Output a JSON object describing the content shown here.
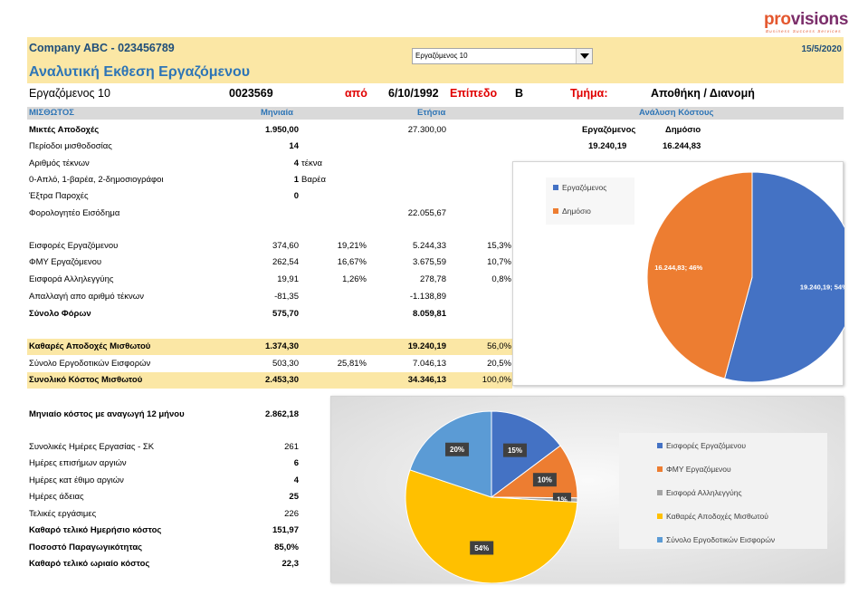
{
  "logo": {
    "part1": "pro",
    "part2": "visions",
    "tagline": "Business Success Services"
  },
  "header": {
    "company": "Company ABC - 023456789",
    "title": "Αναλυτική Εκθεση Εργαζόμενου",
    "date": "15/5/2020",
    "dropdown_value": "Εργαζόμενος 10"
  },
  "employee": {
    "name": "Εργαζόμενος 10",
    "id": "0023569",
    "from_label": "από",
    "from_date": "6/10/1992",
    "level_label": "Επίπεδο",
    "level": "B",
    "dept_label": "Τμήμα:",
    "dept": "Αποθήκη / Διανομή"
  },
  "columns": {
    "salary": "ΜΙΣΘΩΤΟΣ",
    "monthly": "Μηνιαία",
    "annual": "Ετήσια",
    "cost": "Ανάλυση Κόστους"
  },
  "cost_analysis": {
    "employee_label": "Εργαζόμενος",
    "public_label": "Δημόσιο",
    "employee_value": "19.240,19",
    "public_value": "16.244,83"
  },
  "rows": {
    "gross": {
      "label": "Μικτές Αποδοχές",
      "monthly": "1.950,00",
      "annual": "27.300,00"
    },
    "periods": {
      "label": "Περίοδοι μισθοδοσίας",
      "monthly": "14"
    },
    "children": {
      "label": "Αριθμός τέκνων",
      "monthly": "4",
      "unit": "τέκνα"
    },
    "insurance": {
      "label": "0-Απλό, 1-βαρέα, 2-δημοσιογράφοι",
      "monthly": "1",
      "unit": "Βαρέα"
    },
    "extra": {
      "label": "Έξτρα Παροχές",
      "monthly": "0"
    },
    "taxable": {
      "label": "Φορολογητέο Εισόδημα",
      "annual": "22.055,67"
    },
    "contrib": {
      "label": "Εισφορές Εργαζόμενου",
      "monthly": "374,60",
      "pct_m": "19,21%",
      "annual": "5.244,33",
      "pct_a": "15,3%"
    },
    "tax": {
      "label": "ΦΜΥ Εργαζόμενου",
      "monthly": "262,54",
      "pct_m": "16,67%",
      "annual": "3.675,59",
      "pct_a": "10,7%"
    },
    "solidarity": {
      "label": "Εισφορά Αλληλεγγύης",
      "monthly": "19,91",
      "pct_m": "1,26%",
      "annual": "278,78",
      "pct_a": "0,8%"
    },
    "exemption": {
      "label": "Απαλλαγή απο αριθμό τέκνων",
      "monthly": "-81,35",
      "annual": "-1.138,89"
    },
    "total_tax": {
      "label": "Σύνολο Φόρων",
      "monthly": "575,70",
      "annual": "8.059,81"
    },
    "net": {
      "label": "Καθαρές Αποδοχές Μισθωτού",
      "monthly": "1.374,30",
      "annual": "19.240,19",
      "pct_a": "56,0%"
    },
    "employer": {
      "label": "Σύνολο Εργοδοτικών Εισφορών",
      "monthly": "503,30",
      "pct_m": "25,81%",
      "annual": "7.046,13",
      "pct_a": "20,5%"
    },
    "total_cost": {
      "label": "Συνολικό Κόστος Μισθωτού",
      "monthly": "2.453,30",
      "annual": "34.346,13",
      "pct_a": "100,0%"
    },
    "monthly12": {
      "label": "Μηνιαίο κόστος με αναγωγή 12 μήνου",
      "monthly": "2.862,18"
    },
    "workdays": {
      "label": "Συνολικές Ημέρες Εργασίας - ΣΚ",
      "monthly": "261"
    },
    "holidays": {
      "label": "Ημέρες επισήμων αργιών",
      "monthly": "6"
    },
    "customs": {
      "label": "Ημέρες κατ έθιμο αργιών",
      "monthly": "4"
    },
    "leave": {
      "label": "Ημέρες άδειας",
      "monthly": "25"
    },
    "final_days": {
      "label": "Τελικές εργάσιμες",
      "monthly": "226"
    },
    "daily_cost": {
      "label": "Καθαρό τελικό Ημερήσιο κόστος",
      "monthly": "151,97"
    },
    "productivity": {
      "label": "Ποσοστό Παραγωγικότητας",
      "monthly": "85,0%"
    },
    "hourly_cost": {
      "label": "Καθαρό τελικό ωριαίο κόστος",
      "monthly": "22,3"
    }
  },
  "chart_data": [
    {
      "type": "pie",
      "title": "",
      "categories": [
        "Εργαζόμενος",
        "Δημόσιο"
      ],
      "values": [
        19240.19,
        16244.83
      ],
      "labels": [
        "19.240,19; 54%",
        "16.244,83; 46%"
      ],
      "colors": [
        "#4472c4",
        "#ed7d31"
      ],
      "legend": "top-left"
    },
    {
      "type": "pie",
      "title": "",
      "categories": [
        "Εισφορές Εργαζόμενου",
        "ΦΜΥ Εργαζόμενου",
        "Εισφορά Αλληλεγγύης",
        "Καθαρές Αποδοχές Μισθωτού",
        "Σύνολο Εργοδοτικών Εισφορών"
      ],
      "values": [
        5244.33,
        3675.59,
        278.78,
        19240.19,
        7046.13
      ],
      "labels": [
        "15%",
        "10%",
        "1%",
        "54%",
        "20%"
      ],
      "colors": [
        "#4472c4",
        "#ed7d31",
        "#a5a5a5",
        "#ffc000",
        "#5b9bd5"
      ],
      "legend": "right"
    }
  ]
}
